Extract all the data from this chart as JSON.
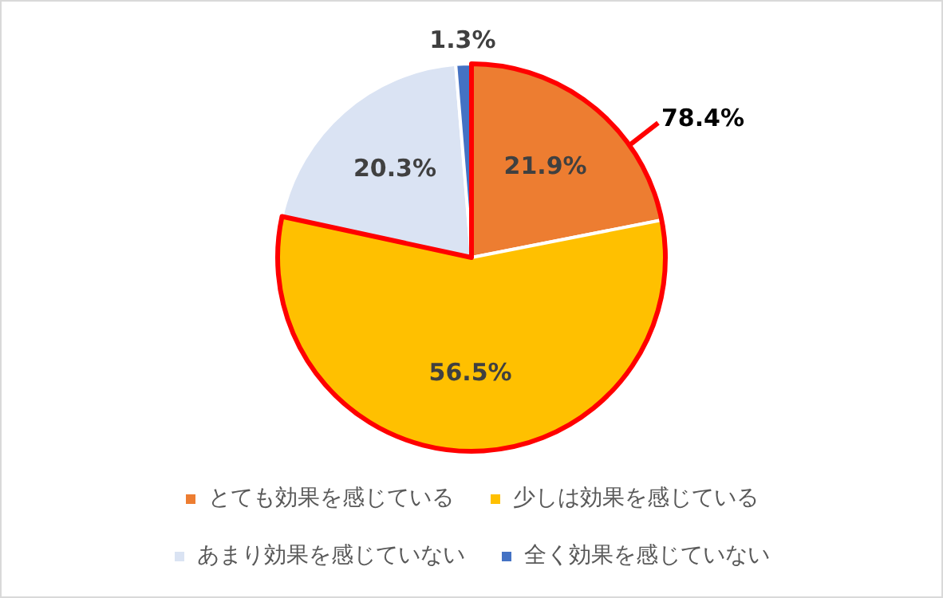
{
  "chart_data": {
    "type": "pie",
    "categories": [
      "とても効果を感じている",
      "少しは効果を感じている",
      "あまり効果を感じていない",
      "全く効果を感じていない"
    ],
    "values": [
      21.9,
      56.5,
      20.3,
      1.3
    ],
    "colors": [
      "#ed7d31",
      "#ffc000",
      "#dae3f3",
      "#4472c4"
    ],
    "value_labels": [
      "21.9%",
      "56.5%",
      "20.3%",
      "1.3%"
    ],
    "annotations": [
      "78.4%"
    ],
    "legend": "bottom"
  }
}
